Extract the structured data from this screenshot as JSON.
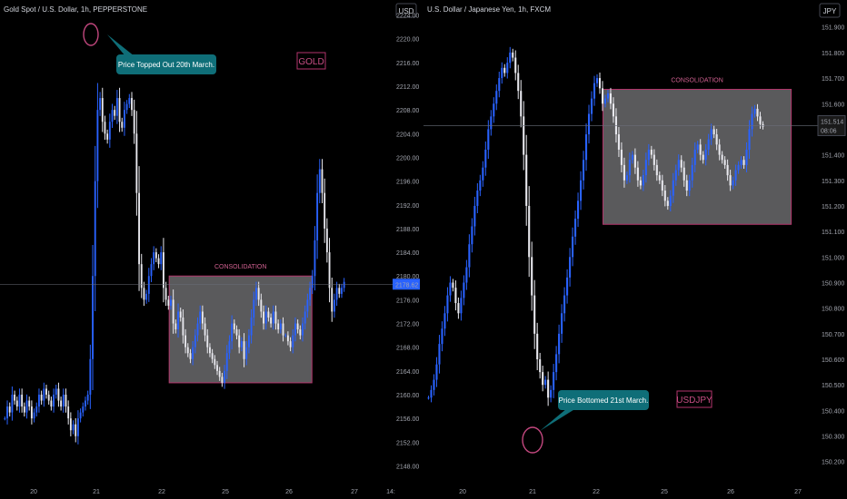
{
  "chart_data": [
    {
      "type": "candlestick",
      "title": "Gold Spot / U.S. Dollar, 1h, PEPPERSTONE",
      "currency": "USD",
      "symbol_label": "GOLD",
      "y_ticks": [
        "2224.00",
        "2220.00",
        "2216.00",
        "2212.00",
        "2208.00",
        "2204.00",
        "2200.00",
        "2196.00",
        "2192.00",
        "2188.00",
        "2184.00",
        "2180.00",
        "2176.00",
        "2172.00",
        "2168.00",
        "2164.00",
        "2160.00",
        "2156.00",
        "2152.00",
        "2148.00"
      ],
      "ylim": [
        2147,
        2225
      ],
      "x_ticks": [
        "20",
        "21",
        "22",
        "25",
        "26",
        "27",
        "14:"
      ],
      "last_price": "2178.62",
      "zone": {
        "label": "CONSOLIDATION",
        "y_top": 2180.0,
        "y_bottom": 2162.0,
        "x_start": 22.35,
        "x_end": 26.35
      },
      "annotation": "Price Topped Out 20th March.",
      "close_series": [
        2156,
        2158,
        2157,
        2160,
        2159,
        2158,
        2160,
        2158,
        2157,
        2159,
        2158,
        2156,
        2157,
        2158,
        2160,
        2159,
        2161,
        2160,
        2159,
        2158,
        2160,
        2161,
        2159,
        2158,
        2160,
        2158,
        2156,
        2154,
        2155,
        2153,
        2156,
        2157,
        2158,
        2159,
        2160,
        2166,
        2180,
        2196,
        2208,
        2210,
        2206,
        2204,
        2203,
        2206,
        2208,
        2207,
        2210,
        2206,
        2205,
        2208,
        2209,
        2210,
        2208,
        2204,
        2194,
        2182,
        2178,
        2176,
        2177,
        2180,
        2182,
        2184,
        2183,
        2182,
        2184,
        2178,
        2176,
        2175,
        2176,
        2172,
        2171,
        2174,
        2173,
        2170,
        2168,
        2167,
        2166,
        2168,
        2170,
        2172,
        2174,
        2172,
        2170,
        2168,
        2167,
        2166,
        2165,
        2164,
        2163,
        2162,
        2164,
        2167,
        2169,
        2172,
        2171,
        2170,
        2168,
        2169,
        2166,
        2168,
        2170,
        2173,
        2176,
        2178,
        2176,
        2174,
        2172,
        2174,
        2173,
        2172,
        2174,
        2172,
        2171,
        2172,
        2170,
        2170,
        2169,
        2168,
        2170,
        2172,
        2171,
        2170,
        2172,
        2174,
        2176,
        2178,
        2180,
        2186,
        2194,
        2198,
        2194,
        2188,
        2184,
        2178,
        2174,
        2176,
        2178,
        2177,
        2178,
        2179
      ]
    },
    {
      "type": "candlestick",
      "title": "U.S. Dollar / Japanese Yen, 1h, FXCM",
      "currency": "JPY",
      "symbol_label": "USDJPY",
      "y_ticks": [
        "151.900",
        "151.800",
        "151.700",
        "151.600",
        "151.500",
        "151.400",
        "151.300",
        "151.200",
        "151.100",
        "151.000",
        "150.900",
        "150.800",
        "150.700",
        "150.600",
        "150.500",
        "150.400",
        "150.300",
        "150.200"
      ],
      "ylim": [
        150.16,
        151.97
      ],
      "x_ticks": [
        "20",
        "21",
        "22",
        "25",
        "26",
        "27"
      ],
      "last_price": "151.514",
      "countdown": "08:06",
      "zone": {
        "label": "CONSOLIDATION",
        "y_top": 151.656,
        "y_bottom": 151.128,
        "x_start": 22.3,
        "x_end": 26.9
      },
      "annotation": "Price Bottomed 21st March.",
      "close_series": [
        150.45,
        150.48,
        150.52,
        150.58,
        150.66,
        150.72,
        150.78,
        150.85,
        150.9,
        150.88,
        150.82,
        150.78,
        150.84,
        150.9,
        150.96,
        151.05,
        151.12,
        151.2,
        151.26,
        151.3,
        151.35,
        151.42,
        151.5,
        151.55,
        151.6,
        151.65,
        151.7,
        151.74,
        151.72,
        151.76,
        151.8,
        151.78,
        151.72,
        151.65,
        151.55,
        151.4,
        151.2,
        151.0,
        150.85,
        150.7,
        150.6,
        150.55,
        150.5,
        150.52,
        150.45,
        150.48,
        150.55,
        150.62,
        150.7,
        150.78,
        150.85,
        150.92,
        151.0,
        151.08,
        151.15,
        151.22,
        151.3,
        151.38,
        151.48,
        151.56,
        151.62,
        151.68,
        151.7,
        151.66,
        151.6,
        151.62,
        151.64,
        151.6,
        151.55,
        151.48,
        151.42,
        151.36,
        151.3,
        151.32,
        151.38,
        151.4,
        151.35,
        151.3,
        151.28,
        151.32,
        151.38,
        151.42,
        151.4,
        151.36,
        151.32,
        151.3,
        151.26,
        151.22,
        151.2,
        151.24,
        151.3,
        151.34,
        151.38,
        151.35,
        151.3,
        151.26,
        151.3,
        151.36,
        151.42,
        151.44,
        151.4,
        151.38,
        151.42,
        151.46,
        151.5,
        151.48,
        151.44,
        151.4,
        151.38,
        151.36,
        151.32,
        151.28,
        151.3,
        151.34,
        151.36,
        151.38,
        151.36,
        151.42,
        151.5,
        151.56,
        151.58,
        151.55,
        151.52,
        151.51
      ]
    }
  ]
}
